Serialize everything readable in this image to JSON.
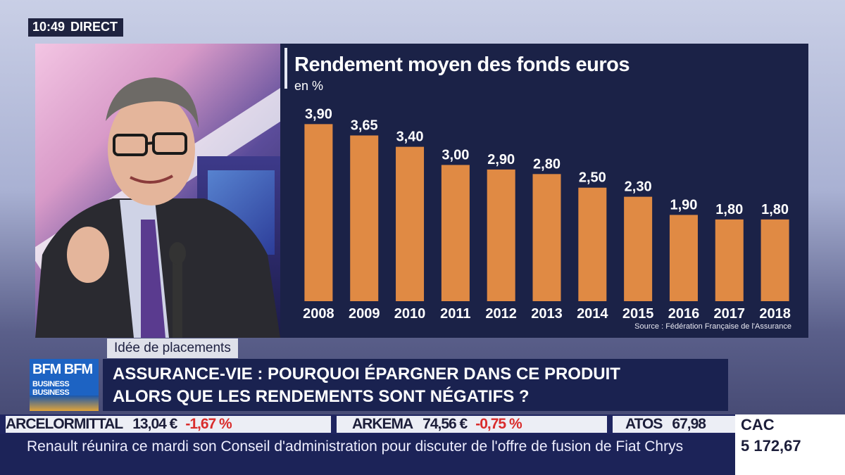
{
  "clock": {
    "time": "10:49",
    "label": "DIRECT"
  },
  "chart": {
    "title": "Rendement moyen des fonds euros",
    "unit": "en %",
    "source": "Source : Fédération Française de l'Assurance"
  },
  "chart_data": {
    "type": "bar",
    "title": "Rendement moyen des fonds euros",
    "ylabel": "en %",
    "categories": [
      "2008",
      "2009",
      "2010",
      "2011",
      "2012",
      "2013",
      "2014",
      "2015",
      "2016",
      "2017",
      "2018"
    ],
    "values": [
      3.9,
      3.65,
      3.4,
      3.0,
      2.9,
      2.8,
      2.5,
      2.3,
      1.9,
      1.8,
      1.8
    ],
    "labels": [
      "3,90",
      "3,65",
      "3,40",
      "3,00",
      "2,90",
      "2,80",
      "2,50",
      "2,30",
      "1,90",
      "1,80",
      "1,80"
    ],
    "ylim": [
      0,
      4.2
    ],
    "grid": false,
    "bar_color": "#e08a44"
  },
  "topic_tag": "Idée de placements",
  "logo": {
    "line1": "BFM BFM",
    "line2": "BUSINESS BUSINESS"
  },
  "headline": {
    "line1": "ASSURANCE-VIE : POURQUOI ÉPARGNER DANS CE PRODUIT",
    "line2": "ALORS QUE LES RENDEMENTS SONT NÉGATIFS ?"
  },
  "tickers": [
    {
      "name": "ARCELORMITTAL",
      "price": "13,04 €",
      "change": "-1,67 %"
    },
    {
      "name": "ARKEMA",
      "price": "74,56 €",
      "change": "-0,75 %"
    },
    {
      "name": "ATOS",
      "price": "67,98",
      "change": ""
    }
  ],
  "index": {
    "name": "CAC",
    "value": "5 172,67"
  },
  "news": "Renault réunira ce mardi son Conseil d'administration pour discuter de l'offre de fusion de Fiat Chrys",
  "colors": {
    "bar": "#e08a44",
    "panel": "#1b2247",
    "negative": "#d92c2c"
  }
}
